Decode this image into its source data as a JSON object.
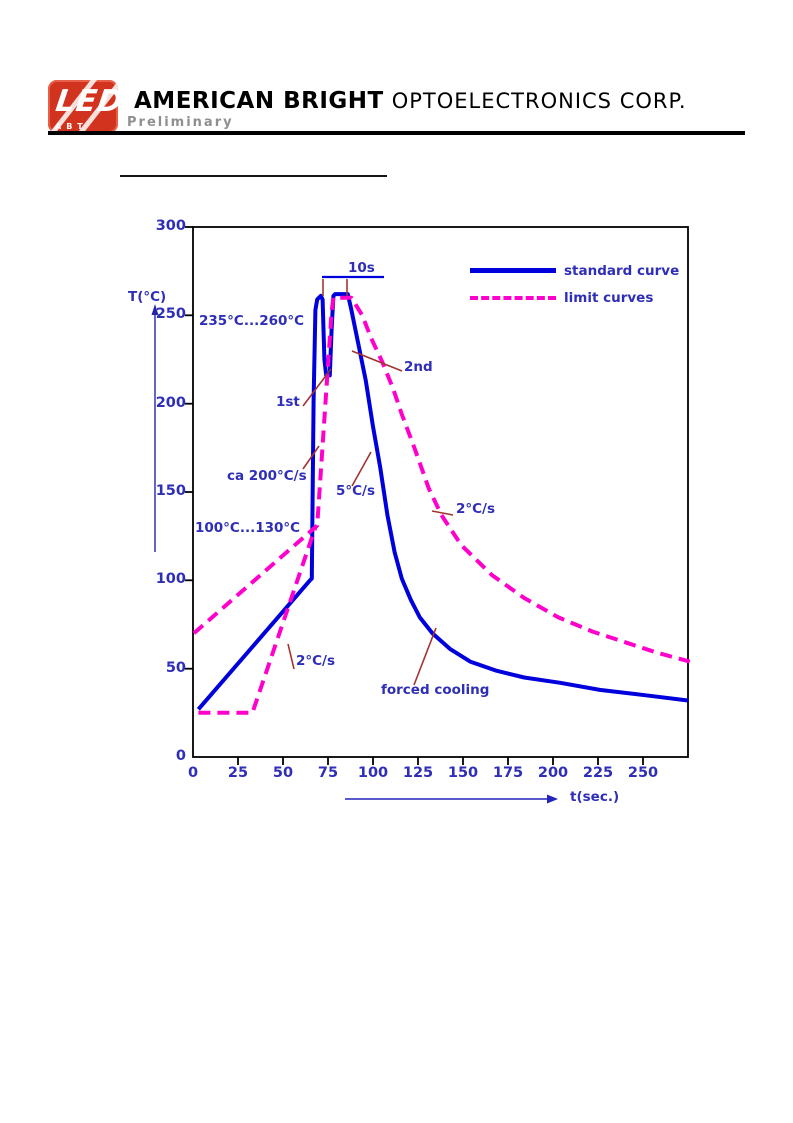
{
  "page": {
    "background": "#ffffff"
  },
  "header": {
    "logo_text": "LED",
    "logo_subtext": "ABT",
    "company_name_bold": "AMERICAN BRIGHT",
    "company_name_regular": "OPTOELECTRONICS CORP.",
    "status_label": "Preliminary"
  },
  "chart": {
    "y_axis_label": "T(°C)",
    "x_axis_label": "t(sec.)",
    "legend": {
      "standard_label": "standard curve",
      "limit_label": "limit curves"
    },
    "annotations": {
      "peak_time": "10s",
      "peak_range": "235°C...260°C",
      "first_peak": "1st",
      "second_peak": "2nd",
      "solder_ramp_rate": "ca 200°C/s",
      "cooling_rate_standard": "5°C/s",
      "cooling_rate_limit": "2°C/s",
      "preheat_range": "100°C...130°C",
      "preheat_rate_limit": "2°C/s",
      "forced_cooling": "forced cooling"
    },
    "colors": {
      "standard_curve": "#0000dd",
      "limit_curve": "#ff00cc",
      "annotation_text": "#2e2eb8",
      "pointer_lines": "#a23430",
      "axis": "#000000"
    }
  },
  "chart_data": {
    "type": "line",
    "title": "",
    "xlabel": "t(sec.)",
    "ylabel": "T(°C)",
    "xlim": [
      0,
      275
    ],
    "ylim": [
      0,
      300
    ],
    "x_ticks": [
      0,
      25,
      50,
      75,
      100,
      125,
      150,
      175,
      200,
      225,
      250
    ],
    "y_ticks": [
      0,
      50,
      100,
      150,
      200,
      250,
      300
    ],
    "grid": false,
    "legend_position": "top-right",
    "series": [
      {
        "id": "standard-curve",
        "name": "standard curve",
        "color": "#0000dd",
        "line_style": "solid",
        "stroke_width": 4,
        "points": [
          [
            3,
            27
          ],
          [
            65,
            100
          ],
          [
            66,
            101
          ],
          [
            67,
            202
          ],
          [
            68,
            253
          ],
          [
            69,
            259
          ],
          [
            71,
            261
          ],
          [
            72,
            259
          ],
          [
            73,
            225
          ],
          [
            74,
            216
          ],
          [
            76,
            216
          ],
          [
            77,
            242
          ],
          [
            78,
            261
          ],
          [
            79,
            262
          ],
          [
            86,
            262
          ],
          [
            88,
            253
          ],
          [
            91,
            238
          ],
          [
            96,
            213
          ],
          [
            100,
            187
          ],
          [
            104,
            164
          ],
          [
            108,
            137
          ],
          [
            112,
            116
          ],
          [
            116,
            101
          ],
          [
            121,
            89
          ],
          [
            126,
            79
          ],
          [
            133,
            70
          ],
          [
            143,
            61
          ],
          [
            154,
            54
          ],
          [
            168,
            49
          ],
          [
            184,
            45
          ],
          [
            204,
            42
          ],
          [
            226,
            38
          ],
          [
            251,
            35
          ],
          [
            275,
            32
          ]
        ]
      },
      {
        "id": "limit-curve-upper",
        "name": "limit curves (upper)",
        "color": "#ff00cc",
        "line_style": "dashed",
        "stroke_width": 4,
        "points": [
          [
            0.5,
            70
          ],
          [
            69,
            131
          ],
          [
            77,
            252
          ],
          [
            78,
            260
          ],
          [
            88,
            260
          ],
          [
            94,
            250
          ],
          [
            99,
            237
          ],
          [
            105,
            224
          ],
          [
            111,
            209
          ],
          [
            116,
            194
          ],
          [
            123,
            175
          ],
          [
            131,
            152
          ],
          [
            138,
            137
          ],
          [
            149,
            120
          ],
          [
            166,
            103
          ],
          [
            184,
            90
          ],
          [
            203,
            79
          ],
          [
            222,
            71
          ],
          [
            240,
            65
          ],
          [
            258,
            59
          ],
          [
            276,
            54
          ]
        ]
      },
      {
        "id": "limit-curve-lower",
        "name": "limit curves (lower)",
        "color": "#ff00cc",
        "line_style": "dashed",
        "stroke_width": 4,
        "points": [
          [
            3,
            25
          ],
          [
            33,
            25
          ],
          [
            68,
            130
          ]
        ]
      }
    ],
    "annotations": [
      "10s",
      "235°C...260°C",
      "1st",
      "2nd",
      "ca 200°C/s",
      "5°C/s",
      "2°C/s",
      "100°C...130°C",
      "2°C/s",
      "forced cooling"
    ]
  }
}
